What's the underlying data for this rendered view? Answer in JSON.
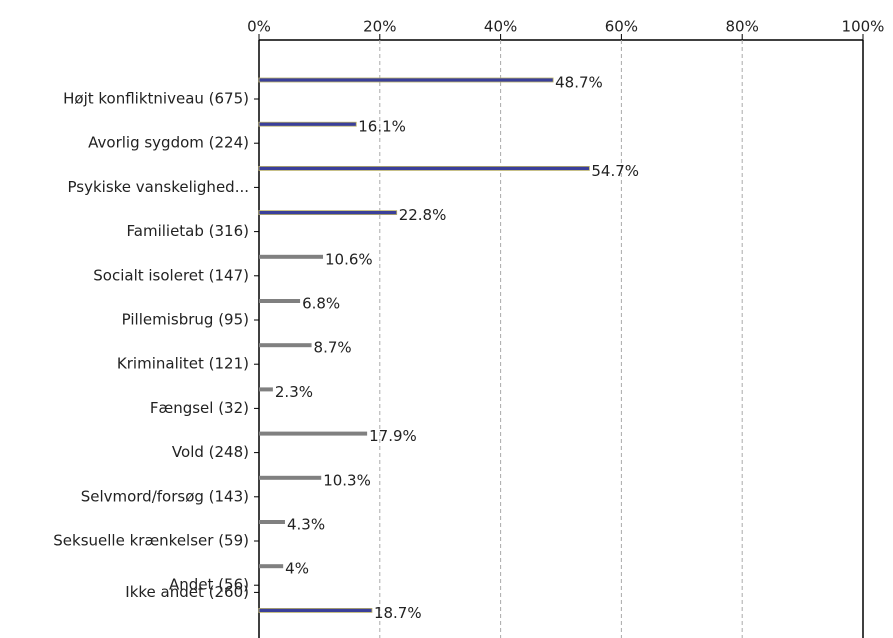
{
  "chart_data": {
    "type": "hbar",
    "categories": [
      "Højt konfliktniveau (675)",
      "Avorlig sygdom (224)",
      "Psykiske vanskelighed...",
      "Familietab (316)",
      "Socialt isoleret (147)",
      "Pillemisbrug (95)",
      "Kriminalitet (121)",
      "Fængsel (32)",
      "Vold (248)",
      "Selvmord/forsøg (143)",
      "Seksuelle krænkelser (59)",
      "Andet (56)",
      "Ikke andet (260)"
    ],
    "values": [
      48.7,
      16.1,
      54.7,
      22.8,
      10.6,
      6.8,
      8.7,
      2.3,
      17.9,
      10.3,
      4.3,
      4,
      18.7
    ],
    "value_labels": [
      "48.7%",
      "16.1%",
      "54.7%",
      "22.8%",
      "10.6%",
      "6.8%",
      "8.7%",
      "2.3%",
      "17.9%",
      "10.3%",
      "4.3%",
      "4%",
      "18.7%"
    ],
    "colors": [
      "#3a3f9a",
      "#3a3f9a",
      "#3a3f9a",
      "#3a3f9a",
      "#808080",
      "#808080",
      "#808080",
      "#808080",
      "#808080",
      "#808080",
      "#808080",
      "#808080",
      "#3a3f9a"
    ],
    "xlim": [
      0,
      100
    ],
    "xticks": [
      {
        "value": 0,
        "label": "0%"
      },
      {
        "value": 20,
        "label": "20%"
      },
      {
        "value": 40,
        "label": "40%"
      },
      {
        "value": 60,
        "label": "60%"
      },
      {
        "value": 80,
        "label": "80%"
      },
      {
        "value": 100,
        "label": "100%"
      }
    ],
    "grid": true
  }
}
